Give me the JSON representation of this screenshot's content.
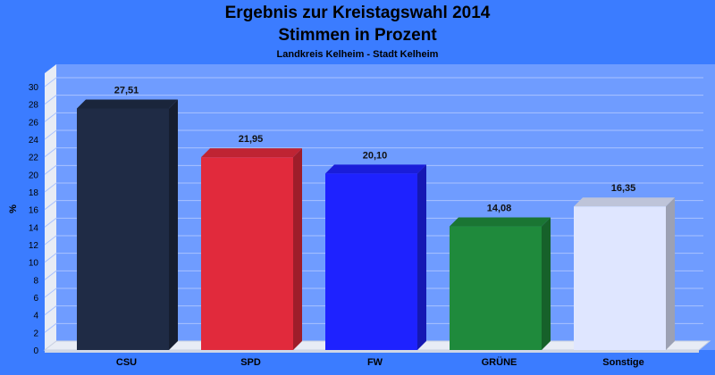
{
  "chart_data": {
    "type": "bar",
    "title": "Ergebnis zur Kreistagswahl 2014",
    "title2": "Stimmen in Prozent",
    "subtitle": "Landkreis Kelheim - Stadt Kelheim",
    "ylabel": "%",
    "ylim": [
      0,
      30
    ],
    "yticks": [
      0,
      2,
      4,
      6,
      8,
      10,
      12,
      14,
      16,
      18,
      20,
      22,
      24,
      26,
      28,
      30
    ],
    "categories": [
      "CSU",
      "SPD",
      "FW",
      "GRÜNE",
      "Sonstige"
    ],
    "values": [
      27.51,
      21.95,
      20.1,
      14.08,
      16.35
    ],
    "value_labels": [
      "27,51",
      "21,95",
      "20,10",
      "14,08",
      "16,35"
    ],
    "colors": [
      "#1f2b45",
      "#e12a3c",
      "#1e22ff",
      "#1f8a3c",
      "#dfe6ff"
    ],
    "grid": true,
    "legend": "none"
  }
}
